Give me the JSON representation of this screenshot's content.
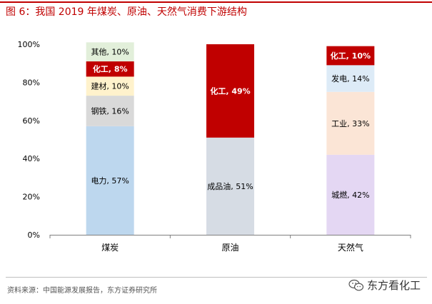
{
  "figure_title": "图 6：我国 2019 年煤炭、原油、天然气消费下游结构",
  "source_note": "资料来源：中国能源发展报告，东方证券研究所",
  "brand_name": "东方看化工",
  "colors": {
    "accent": "#c00000",
    "axis": "#7f7f7f",
    "label_dark": "#000000",
    "label_light": "#ffffff"
  },
  "chart_data": {
    "type": "bar",
    "stacked": true,
    "ylim": [
      0,
      100
    ],
    "yticks": [
      0,
      20,
      40,
      60,
      80,
      100
    ],
    "ytick_labels": [
      "0%",
      "20%",
      "40%",
      "60%",
      "80%",
      "100%"
    ],
    "categories": [
      "煤炭",
      "原油",
      "天然气"
    ],
    "stacks": [
      {
        "category": "煤炭",
        "segments": [
          {
            "name": "电力",
            "value": 57,
            "label": "电力, 57%",
            "color": "#bdd7ee",
            "bold": false
          },
          {
            "name": "钢铁",
            "value": 16,
            "label": "钢铁, 16%",
            "color": "#d9d9d9",
            "bold": false
          },
          {
            "name": "建材",
            "value": 10,
            "label": "建材, 10%",
            "color": "#fff2cc",
            "bold": false
          },
          {
            "name": "化工",
            "value": 8,
            "label": "化工, 8%",
            "color": "#c00000",
            "bold": true
          },
          {
            "name": "其他",
            "value": 10,
            "label": "其他, 10%",
            "color": "#e2efda",
            "bold": false
          }
        ]
      },
      {
        "category": "原油",
        "segments": [
          {
            "name": "成品油",
            "value": 51,
            "label": "成品油, 51%",
            "color": "#d6dce4",
            "bold": false
          },
          {
            "name": "化工",
            "value": 49,
            "label": "化工, 49%",
            "color": "#c00000",
            "bold": true
          }
        ]
      },
      {
        "category": "天然气",
        "segments": [
          {
            "name": "城燃",
            "value": 42,
            "label": "城燃, 42%",
            "color": "#e4d7f3",
            "bold": false
          },
          {
            "name": "工业",
            "value": 33,
            "label": "工业, 33%",
            "color": "#fbe5d6",
            "bold": false
          },
          {
            "name": "发电",
            "value": 14,
            "label": "发电, 14%",
            "color": "#ddebf7",
            "bold": false
          },
          {
            "name": "化工",
            "value": 10,
            "label": "化工, 10%",
            "color": "#c00000",
            "bold": true
          }
        ]
      }
    ]
  }
}
